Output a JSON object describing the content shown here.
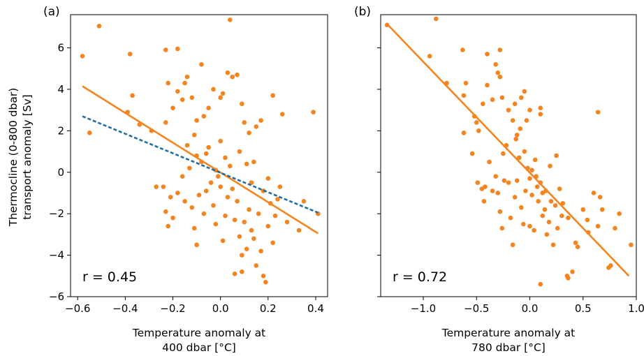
{
  "colors": {
    "points": "#f5841f",
    "fit": "#f5841f",
    "dashed": "#1f6fa5",
    "axis": "#000000"
  },
  "chart_data": [
    {
      "type": "scatter",
      "panel_label": "(a)",
      "xlabel": [
        "Temperature anomaly at",
        "400 dbar [°C]"
      ],
      "ylabel": [
        "Thermocline (0-800 dbar)",
        "transport anomaly [Sv]"
      ],
      "xlim": [
        -0.63,
        0.45
      ],
      "ylim": [
        -6,
        7.6
      ],
      "xticks": [
        -0.6,
        -0.4,
        -0.2,
        0.0,
        0.2,
        0.4
      ],
      "xtick_labels": [
        "−0.6",
        "−0.4",
        "−0.2",
        "0.0",
        "0.2",
        "0.4"
      ],
      "yticks": [
        -6,
        -4,
        -2,
        0,
        2,
        4,
        6
      ],
      "ytick_labels": [
        "−6",
        "−4",
        "−2",
        "0",
        "2",
        "4",
        "6"
      ],
      "annotation": "r = 0.45",
      "fit_line": {
        "x": [
          -0.58,
          0.41
        ],
        "y": [
          4.15,
          -2.95
        ]
      },
      "dashed_line": {
        "x": [
          -0.58,
          0.41
        ],
        "y": [
          2.7,
          -1.95
        ]
      },
      "points": [
        [
          -0.58,
          5.6
        ],
        [
          -0.51,
          7.05
        ],
        [
          -0.38,
          5.7
        ],
        [
          -0.23,
          5.9
        ],
        [
          -0.18,
          5.95
        ],
        [
          -0.08,
          5.2
        ],
        [
          0.04,
          7.35
        ],
        [
          -0.55,
          1.9
        ],
        [
          -0.39,
          2.9
        ],
        [
          -0.37,
          3.7
        ],
        [
          -0.34,
          2.3
        ],
        [
          -0.29,
          2.0
        ],
        [
          -0.23,
          2.4
        ],
        [
          -0.22,
          4.3
        ],
        [
          -0.2,
          3.1
        ],
        [
          -0.18,
          3.9
        ],
        [
          -0.16,
          3.5
        ],
        [
          -0.15,
          4.3
        ],
        [
          -0.14,
          4.6
        ],
        [
          -0.12,
          3.6
        ],
        [
          -0.1,
          2.5
        ],
        [
          -0.07,
          2.7
        ],
        [
          -0.05,
          3.1
        ],
        [
          -0.03,
          4.0
        ],
        [
          0.0,
          3.6
        ],
        [
          0.01,
          3.8
        ],
        [
          0.03,
          4.8
        ],
        [
          0.05,
          4.6
        ],
        [
          0.07,
          4.7
        ],
        [
          0.09,
          3.3
        ],
        [
          0.1,
          2.4
        ],
        [
          0.12,
          1.9
        ],
        [
          0.15,
          2.2
        ],
        [
          0.17,
          2.5
        ],
        [
          0.22,
          3.7
        ],
        [
          0.26,
          2.8
        ],
        [
          0.39,
          2.9
        ],
        [
          -0.27,
          -0.7
        ],
        [
          -0.24,
          -0.7
        ],
        [
          -0.23,
          -1.9
        ],
        [
          -0.22,
          -2.6
        ],
        [
          -0.21,
          -1.2
        ],
        [
          -0.2,
          -2.2
        ],
        [
          -0.18,
          -1.0
        ],
        [
          -0.16,
          -0.2
        ],
        [
          -0.15,
          -1.4
        ],
        [
          -0.13,
          0.2
        ],
        [
          -0.12,
          -1.7
        ],
        [
          -0.11,
          -2.7
        ],
        [
          -0.1,
          -3.5
        ],
        [
          -0.09,
          -1.1
        ],
        [
          -0.08,
          0.5
        ],
        [
          -0.07,
          -2.0
        ],
        [
          -0.06,
          -0.9
        ],
        [
          -0.05,
          1.2
        ],
        [
          -0.04,
          -0.5
        ],
        [
          -0.03,
          -1.6
        ],
        [
          -0.02,
          -2.5
        ],
        [
          0.0,
          -0.7
        ],
        [
          0.01,
          -3.3
        ],
        [
          0.02,
          -2.1
        ],
        [
          0.03,
          -1.2
        ],
        [
          0.04,
          0.3
        ],
        [
          0.05,
          -0.8
        ],
        [
          0.06,
          -2.3
        ],
        [
          0.07,
          -1.4
        ],
        [
          0.08,
          -3.1
        ],
        [
          0.09,
          -4.0
        ],
        [
          0.1,
          -2.4
        ],
        [
          0.11,
          -3.7
        ],
        [
          0.12,
          -1.8
        ],
        [
          0.13,
          -2.8
        ],
        [
          0.14,
          -3.2
        ],
        [
          0.15,
          -4.5
        ],
        [
          0.16,
          -2.0
        ],
        [
          0.17,
          -3.8
        ],
        [
          0.18,
          -5.0
        ],
        [
          0.19,
          -5.3
        ],
        [
          0.2,
          -2.6
        ],
        [
          0.21,
          -1.5
        ],
        [
          0.22,
          -3.4
        ],
        [
          0.23,
          -2.1
        ],
        [
          0.24,
          -1.3
        ],
        [
          0.25,
          -0.7
        ],
        [
          0.28,
          -2.4
        ],
        [
          0.33,
          -2.8
        ],
        [
          0.35,
          -1.4
        ],
        [
          0.41,
          -2.0
        ],
        [
          0.06,
          -4.9
        ],
        [
          0.09,
          -4.8
        ],
        [
          -0.06,
          0.9
        ],
        [
          -0.02,
          0.1
        ],
        [
          0.0,
          1.5
        ],
        [
          0.02,
          0.7
        ],
        [
          0.11,
          0.4
        ],
        [
          0.14,
          0.5
        ],
        [
          -0.11,
          1.8
        ],
        [
          -0.1,
          0.8
        ],
        [
          0.13,
          -0.5
        ],
        [
          0.18,
          -0.9
        ],
        [
          0.2,
          -0.3
        ],
        [
          -0.14,
          1.3
        ],
        [
          0.08,
          1.0
        ],
        [
          -0.01,
          -0.2
        ]
      ]
    },
    {
      "type": "scatter",
      "panel_label": "(b)",
      "xlabel": [
        "Temperature anomaly at",
        "780 dbar [°C]"
      ],
      "ylabel": [],
      "xlim": [
        -1.4,
        1.0
      ],
      "ylim": [
        -6,
        7.6
      ],
      "xticks": [
        -1.0,
        -0.5,
        0.0,
        0.5,
        1.0
      ],
      "xtick_labels": [
        "−1.0",
        "−0.5",
        "0.0",
        "0.5",
        "1.0"
      ],
      "yticks": [
        -6,
        -4,
        -2,
        0,
        2,
        4,
        6
      ],
      "ytick_labels": [],
      "annotation": "r = 0.72",
      "fit_line": {
        "x": [
          -1.34,
          0.93
        ],
        "y": [
          7.15,
          -5.0
        ]
      },
      "dashed_line": null,
      "points": [
        [
          -1.34,
          7.1
        ],
        [
          -0.88,
          7.4
        ],
        [
          -0.94,
          5.6
        ],
        [
          -0.63,
          5.9
        ],
        [
          -0.28,
          5.9
        ],
        [
          -0.32,
          5.2
        ],
        [
          -0.4,
          5.7
        ],
        [
          -0.6,
          4.3
        ],
        [
          -0.78,
          4.3
        ],
        [
          -0.62,
          3.7
        ],
        [
          -0.52,
          2.7
        ],
        [
          -0.5,
          2.4
        ],
        [
          -0.48,
          2.0
        ],
        [
          -0.44,
          3.3
        ],
        [
          -0.4,
          4.2
        ],
        [
          -0.35,
          3.5
        ],
        [
          -0.3,
          4.8
        ],
        [
          -0.28,
          4.6
        ],
        [
          -0.26,
          3.6
        ],
        [
          -0.2,
          3.0
        ],
        [
          -0.16,
          2.5
        ],
        [
          -0.14,
          3.3
        ],
        [
          -0.12,
          1.8
        ],
        [
          -0.08,
          3.6
        ],
        [
          -0.05,
          3.9
        ],
        [
          -0.03,
          2.5
        ],
        [
          0.0,
          3.0
        ],
        [
          0.1,
          3.1
        ],
        [
          0.1,
          2.8
        ],
        [
          -0.62,
          1.9
        ],
        [
          -0.54,
          0.9
        ],
        [
          -0.49,
          -0.5
        ],
        [
          -0.45,
          -0.8
        ],
        [
          -0.42,
          -0.7
        ],
        [
          -0.38,
          0.5
        ],
        [
          -0.35,
          -0.9
        ],
        [
          -0.32,
          -0.2
        ],
        [
          -0.3,
          -1.0
        ],
        [
          -0.28,
          -1.9
        ],
        [
          -0.26,
          -2.7
        ],
        [
          -0.25,
          0.9
        ],
        [
          -0.22,
          1.3
        ],
        [
          -0.2,
          -0.5
        ],
        [
          -0.18,
          -2.2
        ],
        [
          -0.16,
          -3.5
        ],
        [
          -0.14,
          -1.2
        ],
        [
          -0.12,
          -0.4
        ],
        [
          -0.1,
          0.7
        ],
        [
          -0.08,
          -1.7
        ],
        [
          -0.06,
          -2.5
        ],
        [
          -0.04,
          -0.9
        ],
        [
          -0.02,
          0.2
        ],
        [
          0.0,
          -2.6
        ],
        [
          0.02,
          -1.1
        ],
        [
          0.04,
          -2.8
        ],
        [
          0.06,
          -0.2
        ],
        [
          0.08,
          -1.4
        ],
        [
          0.1,
          -0.5
        ],
        [
          0.12,
          -2.1
        ],
        [
          0.14,
          -1.8
        ],
        [
          0.16,
          -3.0
        ],
        [
          0.18,
          -2.4
        ],
        [
          0.2,
          -1.4
        ],
        [
          0.22,
          -3.5
        ],
        [
          0.24,
          -1.6
        ],
        [
          0.26,
          -2.7
        ],
        [
          0.28,
          -0.8
        ],
        [
          0.3,
          -2.1
        ],
        [
          0.35,
          -5.0
        ],
        [
          0.36,
          -5.1
        ],
        [
          0.4,
          -4.8
        ],
        [
          0.43,
          -3.4
        ],
        [
          0.45,
          -3.6
        ],
        [
          0.5,
          -1.8
        ],
        [
          0.54,
          -2.3
        ],
        [
          0.6,
          -1.0
        ],
        [
          0.64,
          -2.6
        ],
        [
          0.66,
          -1.2
        ],
        [
          0.68,
          -1.8
        ],
        [
          0.74,
          -4.6
        ],
        [
          0.76,
          -4.5
        ],
        [
          0.8,
          -2.7
        ],
        [
          0.84,
          -2.0
        ],
        [
          0.95,
          -3.5
        ],
        [
          0.1,
          -5.4
        ],
        [
          0.64,
          2.9
        ],
        [
          -0.43,
          -1.4
        ],
        [
          -0.05,
          1.0
        ],
        [
          0.02,
          0.1
        ],
        [
          0.07,
          -0.7
        ],
        [
          0.15,
          -0.9
        ],
        [
          0.19,
          0.3
        ],
        [
          0.25,
          0.8
        ],
        [
          0.05,
          0.6
        ],
        [
          -0.13,
          1.6
        ],
        [
          -0.24,
          -0.4
        ],
        [
          0.12,
          -1.0
        ],
        [
          0.31,
          -1.5
        ],
        [
          0.36,
          -2.2
        ],
        [
          0.55,
          -2.9
        ],
        [
          -0.09,
          2.1
        ],
        [
          0.0,
          -0.3
        ]
      ]
    }
  ]
}
